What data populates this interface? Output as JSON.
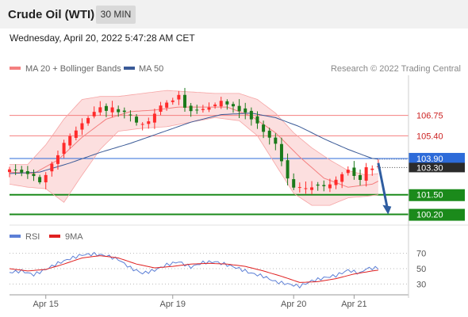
{
  "header": {
    "instrument": "Crude Oil (WTI)",
    "timeframe": "30 MIN"
  },
  "datetime": "Wednesday, April 20, 2022 5:47:28 AM CET",
  "colors": {
    "bollinger": "#f47f7f",
    "ma50": "#3a5a97",
    "resistance": "#f47f7f",
    "current_level": "#2d6bd9",
    "support": "#1b8a1b",
    "projection_arrow": "#2f5da0",
    "rsi": "#5c7fd6",
    "rsi_ma": "#e02020",
    "candle_up": "#ff2b2b",
    "candle_down": "#1a7a1a"
  },
  "chart_data": [
    {
      "type": "candlestick",
      "legend": [
        {
          "name": "MA 20 + Bollinger Bands",
          "color": "#f47f7f"
        },
        {
          "name": "MA 50",
          "color": "#3a5a97"
        }
      ],
      "copyright": "Research © 2022 Trading Central",
      "x_ticks": [
        "Apr 15",
        "Apr 19",
        "Apr 20",
        "Apr 21"
      ],
      "ylim": [
        99.6,
        109.4
      ],
      "levels": [
        {
          "label": "106.75",
          "value": 106.75,
          "kind": "resistance"
        },
        {
          "label": "105.40",
          "value": 105.4,
          "kind": "resistance"
        },
        {
          "label": "103.90",
          "value": 103.9,
          "kind": "current"
        },
        {
          "label": "103.30",
          "value": 103.3,
          "kind": "last"
        },
        {
          "label": "101.50",
          "value": 101.5,
          "kind": "support"
        },
        {
          "label": "100.20",
          "value": 100.2,
          "kind": "support"
        }
      ],
      "close_path": [
        [
          0,
          103.2
        ],
        [
          2,
          103.0
        ],
        [
          4,
          102.7
        ],
        [
          5,
          102.4
        ],
        [
          7,
          103.5
        ],
        [
          9,
          104.8
        ],
        [
          11,
          105.8
        ],
        [
          13,
          106.7
        ],
        [
          15,
          107.3
        ],
        [
          16,
          107.0
        ],
        [
          17,
          107.2
        ],
        [
          19,
          106.9
        ],
        [
          20,
          106.7
        ],
        [
          21,
          106.2
        ],
        [
          23,
          106.3
        ],
        [
          24,
          106.9
        ],
        [
          26,
          107.6
        ],
        [
          28,
          108.1
        ],
        [
          29,
          107.4
        ],
        [
          30,
          107.1
        ],
        [
          32,
          107.2
        ],
        [
          34,
          107.4
        ],
        [
          35,
          107.7
        ],
        [
          37,
          107.3
        ],
        [
          39,
          107.0
        ],
        [
          40,
          106.6
        ],
        [
          42,
          105.8
        ],
        [
          44,
          104.8
        ],
        [
          45,
          103.7
        ],
        [
          46,
          102.6
        ],
        [
          47,
          101.9
        ],
        [
          49,
          101.9
        ],
        [
          50,
          102.1
        ],
        [
          52,
          102.0
        ],
        [
          54,
          102.4
        ],
        [
          55,
          103.0
        ],
        [
          56,
          103.2
        ],
        [
          58,
          102.4
        ],
        [
          59,
          103.2
        ],
        [
          61,
          103.3
        ]
      ],
      "ma20_path": [
        [
          0,
          103.0
        ],
        [
          4,
          102.9
        ],
        [
          8,
          103.8
        ],
        [
          12,
          105.3
        ],
        [
          16,
          106.5
        ],
        [
          20,
          107.0
        ],
        [
          24,
          107.1
        ],
        [
          28,
          107.3
        ],
        [
          32,
          107.3
        ],
        [
          36,
          107.3
        ],
        [
          40,
          106.7
        ],
        [
          44,
          105.6
        ],
        [
          48,
          104.0
        ],
        [
          52,
          102.6
        ],
        [
          56,
          102.0
        ],
        [
          60,
          102.2
        ],
        [
          61,
          102.4
        ]
      ],
      "bollinger_upper_path": [
        [
          0,
          103.5
        ],
        [
          3,
          103.5
        ],
        [
          6,
          104.8
        ],
        [
          9,
          106.5
        ],
        [
          12,
          107.8
        ],
        [
          15,
          108.0
        ],
        [
          18,
          108.0
        ],
        [
          22,
          108.2
        ],
        [
          26,
          108.4
        ],
        [
          30,
          108.3
        ],
        [
          34,
          108.2
        ],
        [
          38,
          108.2
        ],
        [
          41,
          107.8
        ],
        [
          44,
          106.9
        ],
        [
          47,
          105.6
        ],
        [
          50,
          104.6
        ],
        [
          53,
          103.8
        ],
        [
          56,
          103.1
        ],
        [
          59,
          102.8
        ],
        [
          61,
          102.9
        ]
      ],
      "bollinger_lower_path": [
        [
          0,
          102.2
        ],
        [
          3,
          102.0
        ],
        [
          6,
          101.9
        ],
        [
          9,
          101.0
        ],
        [
          12,
          102.8
        ],
        [
          15,
          104.5
        ],
        [
          18,
          105.7
        ],
        [
          22,
          105.9
        ],
        [
          26,
          106.0
        ],
        [
          30,
          106.3
        ],
        [
          34,
          106.6
        ],
        [
          38,
          106.4
        ],
        [
          41,
          105.4
        ],
        [
          44,
          103.5
        ],
        [
          47,
          101.6
        ],
        [
          50,
          100.8
        ],
        [
          53,
          100.8
        ],
        [
          56,
          101.3
        ],
        [
          59,
          101.4
        ],
        [
          61,
          101.5
        ]
      ],
      "ma50_path": [
        [
          0,
          102.9
        ],
        [
          5,
          103.0
        ],
        [
          10,
          103.6
        ],
        [
          15,
          104.3
        ],
        [
          20,
          104.9
        ],
        [
          25,
          105.6
        ],
        [
          30,
          106.3
        ],
        [
          35,
          106.8
        ],
        [
          40,
          106.9
        ],
        [
          44,
          106.6
        ],
        [
          48,
          106.0
        ],
        [
          52,
          105.2
        ],
        [
          56,
          104.5
        ],
        [
          60,
          103.9
        ],
        [
          61,
          103.85
        ]
      ],
      "projection_arrow": [
        [
          61,
          103.6
        ],
        [
          62.5,
          100.3
        ]
      ]
    },
    {
      "type": "line",
      "series": [
        {
          "name": "RSI",
          "color": "#5c7fd6"
        },
        {
          "name": "9MA",
          "color": "#e02020"
        }
      ],
      "ylim": [
        20,
        80
      ],
      "y_ticks": [
        70,
        50,
        30
      ],
      "rsi_path": [
        [
          0,
          45
        ],
        [
          2,
          47
        ],
        [
          4,
          42
        ],
        [
          6,
          49
        ],
        [
          8,
          57
        ],
        [
          10,
          63
        ],
        [
          12,
          68
        ],
        [
          14,
          69
        ],
        [
          16,
          67
        ],
        [
          18,
          62
        ],
        [
          20,
          51
        ],
        [
          22,
          44
        ],
        [
          24,
          48
        ],
        [
          26,
          55
        ],
        [
          28,
          59
        ],
        [
          30,
          52
        ],
        [
          32,
          58
        ],
        [
          34,
          59
        ],
        [
          36,
          55
        ],
        [
          38,
          50
        ],
        [
          40,
          44
        ],
        [
          42,
          40
        ],
        [
          44,
          33
        ],
        [
          46,
          30
        ],
        [
          48,
          27
        ],
        [
          50,
          34
        ],
        [
          52,
          38
        ],
        [
          54,
          41
        ],
        [
          56,
          48
        ],
        [
          58,
          44
        ],
        [
          59,
          50
        ],
        [
          61,
          51
        ]
      ],
      "rsi_ma_path": [
        [
          0,
          50
        ],
        [
          3,
          47
        ],
        [
          6,
          49
        ],
        [
          9,
          56
        ],
        [
          12,
          64
        ],
        [
          15,
          67
        ],
        [
          18,
          64
        ],
        [
          21,
          56
        ],
        [
          24,
          51
        ],
        [
          27,
          53
        ],
        [
          30,
          56
        ],
        [
          33,
          57
        ],
        [
          36,
          56
        ],
        [
          39,
          53
        ],
        [
          42,
          47
        ],
        [
          45,
          40
        ],
        [
          48,
          32
        ],
        [
          51,
          33
        ],
        [
          54,
          37
        ],
        [
          57,
          43
        ],
        [
          60,
          47
        ],
        [
          61,
          48
        ]
      ]
    }
  ]
}
